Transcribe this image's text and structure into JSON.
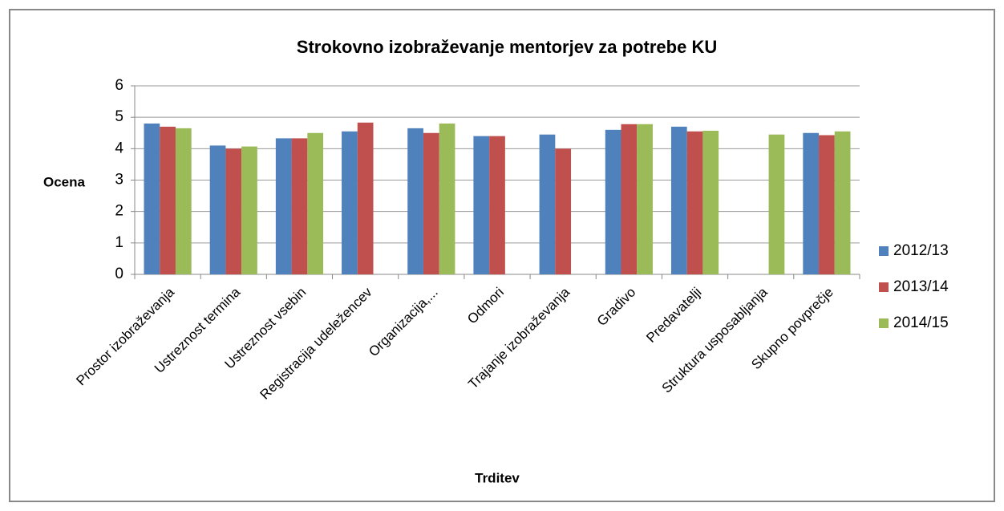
{
  "chart_data": {
    "type": "bar",
    "title": "Strokovno izobraževanje mentorjev za potrebe KU",
    "y_label": "Ocena",
    "x_label": "Trditev",
    "categories": [
      "Prostor izobraževanja",
      "Ustreznost termina",
      "Ustreznost vsebin",
      "Registracija udeležencev",
      "Organizacija,...",
      "Odmori",
      "Trajanje izobraževanja",
      "Gradivo",
      "Predavatelji",
      "Struktura usposabljanja",
      "Skupno povprečje"
    ],
    "series": [
      {
        "name": "2012/13",
        "color": "#4f81bd",
        "values": [
          4.8,
          4.1,
          4.33,
          4.55,
          4.65,
          4.4,
          4.45,
          4.6,
          4.7,
          null,
          4.5
        ]
      },
      {
        "name": "2013/14",
        "color": "#c0504d",
        "values": [
          4.7,
          4.0,
          4.33,
          4.83,
          4.5,
          4.4,
          4.0,
          4.78,
          4.55,
          null,
          4.43
        ]
      },
      {
        "name": "2014/15",
        "color": "#9bbb59",
        "values": [
          4.65,
          4.07,
          4.5,
          null,
          4.8,
          null,
          null,
          4.78,
          4.57,
          4.45,
          4.55
        ]
      }
    ],
    "ylim": [
      0,
      6
    ],
    "yticks": [
      0,
      1,
      2,
      3,
      4,
      5,
      6
    ],
    "grid": true,
    "legend": "right"
  }
}
